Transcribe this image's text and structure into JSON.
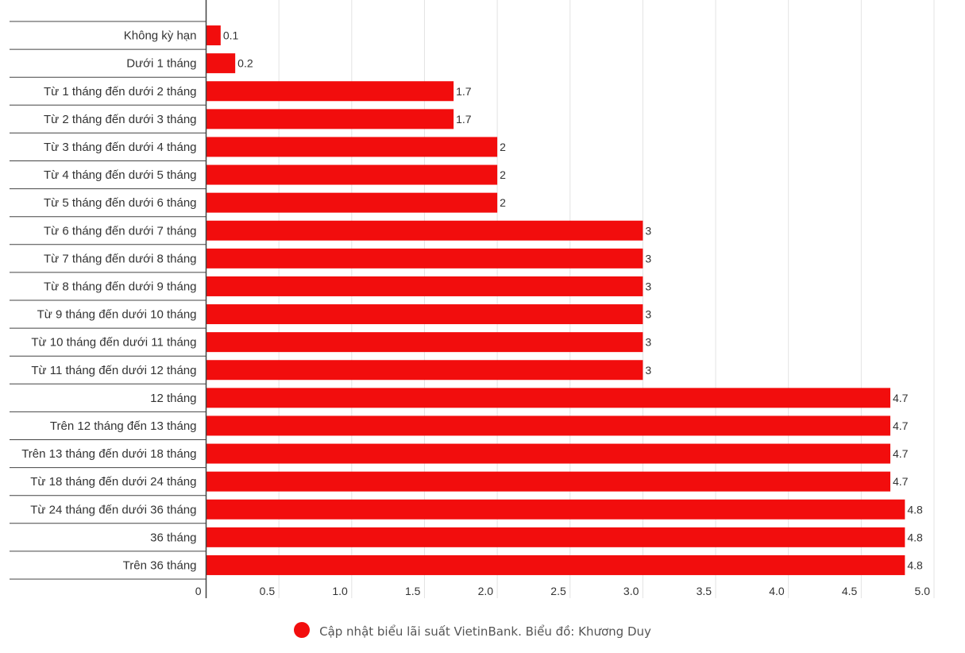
{
  "chart_data": {
    "type": "bar",
    "orientation": "horizontal",
    "categories": [
      "Không kỳ hạn",
      "Dưới 1 tháng",
      "Từ 1 tháng đến dưới 2 tháng",
      "Từ 2 tháng đến dưới 3 tháng",
      "Từ 3 tháng đến dưới 4 tháng",
      "Từ 4 tháng đến dưới 5 tháng",
      "Từ 5 tháng đến dưới 6 tháng",
      "Từ 6 tháng đến dưới 7 tháng",
      "Từ 7 tháng đến dưới 8 tháng",
      "Từ 8 tháng đến dưới 9 tháng",
      "Từ 9 tháng đến dưới 10 tháng",
      "Từ 10 tháng đến dưới 11 tháng",
      "Từ 11 tháng đến dưới 12 tháng",
      "12 tháng",
      "Trên 12 tháng đến 13 tháng",
      "Trên 13 tháng đến dưới 18 tháng",
      "Từ 18 tháng đến dưới 24 tháng",
      "Từ 24 tháng đến dưới 36 tháng",
      "36 tháng",
      "Trên 36 tháng"
    ],
    "values": [
      0.1,
      0.2,
      1.7,
      1.7,
      2,
      2,
      2,
      3,
      3,
      3,
      3,
      3,
      3,
      4.7,
      4.7,
      4.7,
      4.7,
      4.8,
      4.8,
      4.8
    ],
    "value_labels": [
      "0.1",
      "0.2",
      "1.7",
      "1.7",
      "2",
      "2",
      "2",
      "3",
      "3",
      "3",
      "3",
      "3",
      "3",
      "4.7",
      "4.7",
      "4.7",
      "4.7",
      "4.8",
      "4.8",
      "4.8"
    ],
    "xlim": [
      0,
      5
    ],
    "xticks": [
      0,
      0.5,
      1,
      1.5,
      2,
      2.5,
      3,
      3.5,
      4,
      4.5,
      5
    ],
    "xtick_labels": [
      "0",
      "0.5",
      "1.0",
      "1.5",
      "2.0",
      "2.5",
      "3.0",
      "3.5",
      "4.0",
      "4.5",
      "5.0"
    ],
    "grid": "vertical",
    "legend_position": "bottom-center",
    "colors": {
      "bar": "#f20d0d",
      "grid": "#e3e3e3",
      "axis": "#444444",
      "text": "#333333"
    }
  },
  "legend": {
    "label": "Cập nhật biểu lãi suất VietinBank. Biểu đồ: Khương Duy",
    "color": "#f20d0d"
  }
}
